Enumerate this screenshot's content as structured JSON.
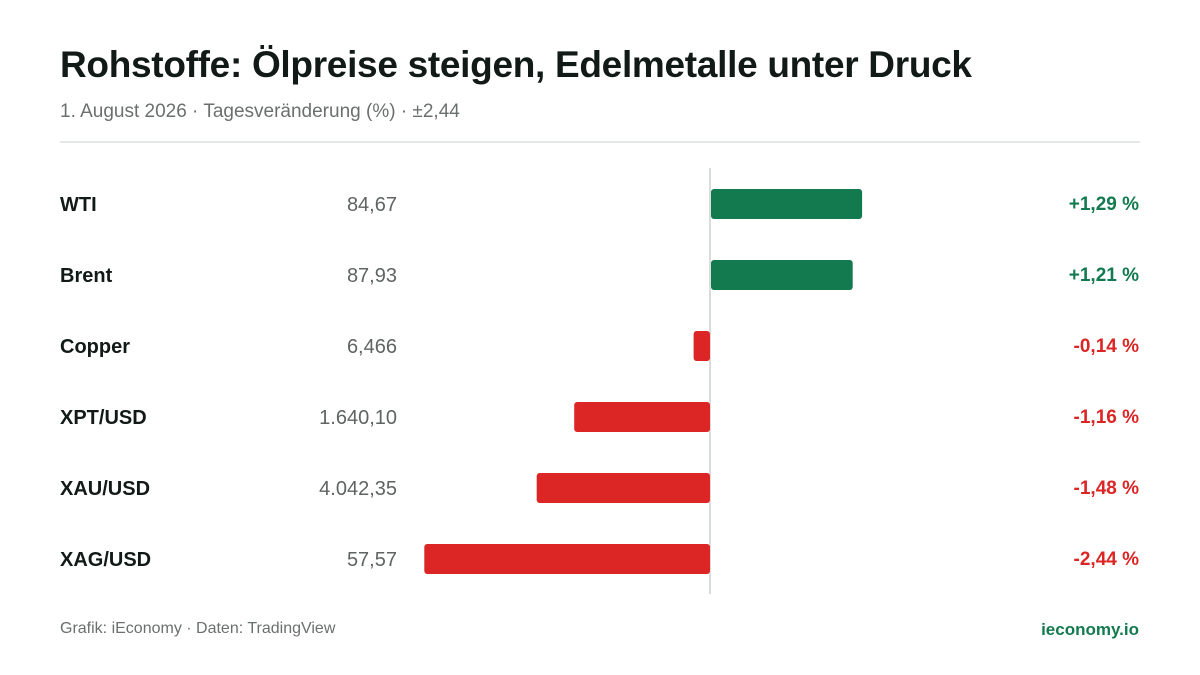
{
  "header": {
    "title": "Rohstoffe: Ölpreise steigen, Edelmetalle unter Druck",
    "subtitle": "1. August 2026 · Tagesveränderung (%) · ±2,44"
  },
  "footer": {
    "source": "Grafik: iEconomy · Daten: TradingView",
    "brand": "ieconomy.io"
  },
  "colors": {
    "positive": "#137a50",
    "negative": "#dc2626",
    "axis": "#d9dcdb",
    "label": "#121a17",
    "price": "#5f6462"
  },
  "chart_data": {
    "type": "bar",
    "orientation": "horizontal",
    "xlim": [
      -2.44,
      2.44
    ],
    "grid": false,
    "categories": [
      "WTI",
      "Brent",
      "Copper",
      "XPT/USD",
      "XAU/USD",
      "XAG/USD"
    ],
    "prices": [
      "84,67",
      "87,93",
      "6,466",
      "1.640,10",
      "4.042,35",
      "57,57"
    ],
    "values": [
      1.29,
      1.21,
      -0.14,
      -1.16,
      -1.48,
      -2.44
    ],
    "value_labels": [
      "+1,29 %",
      "+1,21 %",
      "-0,14 %",
      "-1,16 %",
      "-1,48 %",
      "-2,44 %"
    ]
  }
}
